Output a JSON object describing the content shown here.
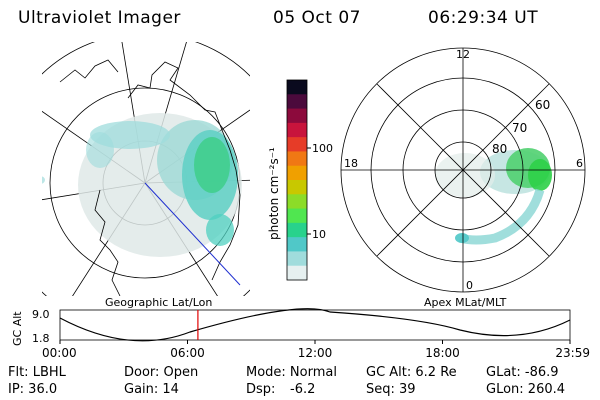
{
  "header": {
    "instrument": "Ultraviolet Imager",
    "date": "05 Oct 07",
    "time": "06:29:34 UT"
  },
  "left_panel": {
    "caption": "Geographic Lat/Lon"
  },
  "right_panel": {
    "caption": "Apex MLat/MLT",
    "mlt_labels": [
      "12",
      "18",
      "6",
      "0"
    ],
    "lat_labels": [
      "60",
      "70",
      "80"
    ]
  },
  "colorbar": {
    "unit_label": "photon cm⁻²s⁻¹",
    "tick_labels": [
      "100",
      "10"
    ],
    "colors": [
      "#0a0a1e",
      "#4b0a3c",
      "#8c0a3c",
      "#c8143c",
      "#e63c28",
      "#f07814",
      "#f0a000",
      "#c8c800",
      "#8cdc28",
      "#50e650",
      "#28d28c",
      "#50c8c8",
      "#a0dcdc",
      "#e6f0f0"
    ]
  },
  "timeline": {
    "axis_label": "GC Alt",
    "y_ticks": [
      "9.0",
      "1.8"
    ],
    "x_ticks": [
      "00:00",
      "06:00",
      "12:00",
      "18:00",
      "23:59"
    ],
    "marker_time_hours": 6.49,
    "marker_color": "#e00000"
  },
  "status": {
    "filter": "Flt: LBHL",
    "door": "Door: Open",
    "mode": "Mode: Normal",
    "gc_alt": "GC Alt: 6.2 Re",
    "glat": "GLat: -86.9",
    "ip": "IP: 36.0",
    "gain": "Gain: 14",
    "dsp_label": "Dsp:",
    "dsp_value": "-6.2",
    "seq": "Seq: 39",
    "glon": "GLon: 260.4"
  }
}
